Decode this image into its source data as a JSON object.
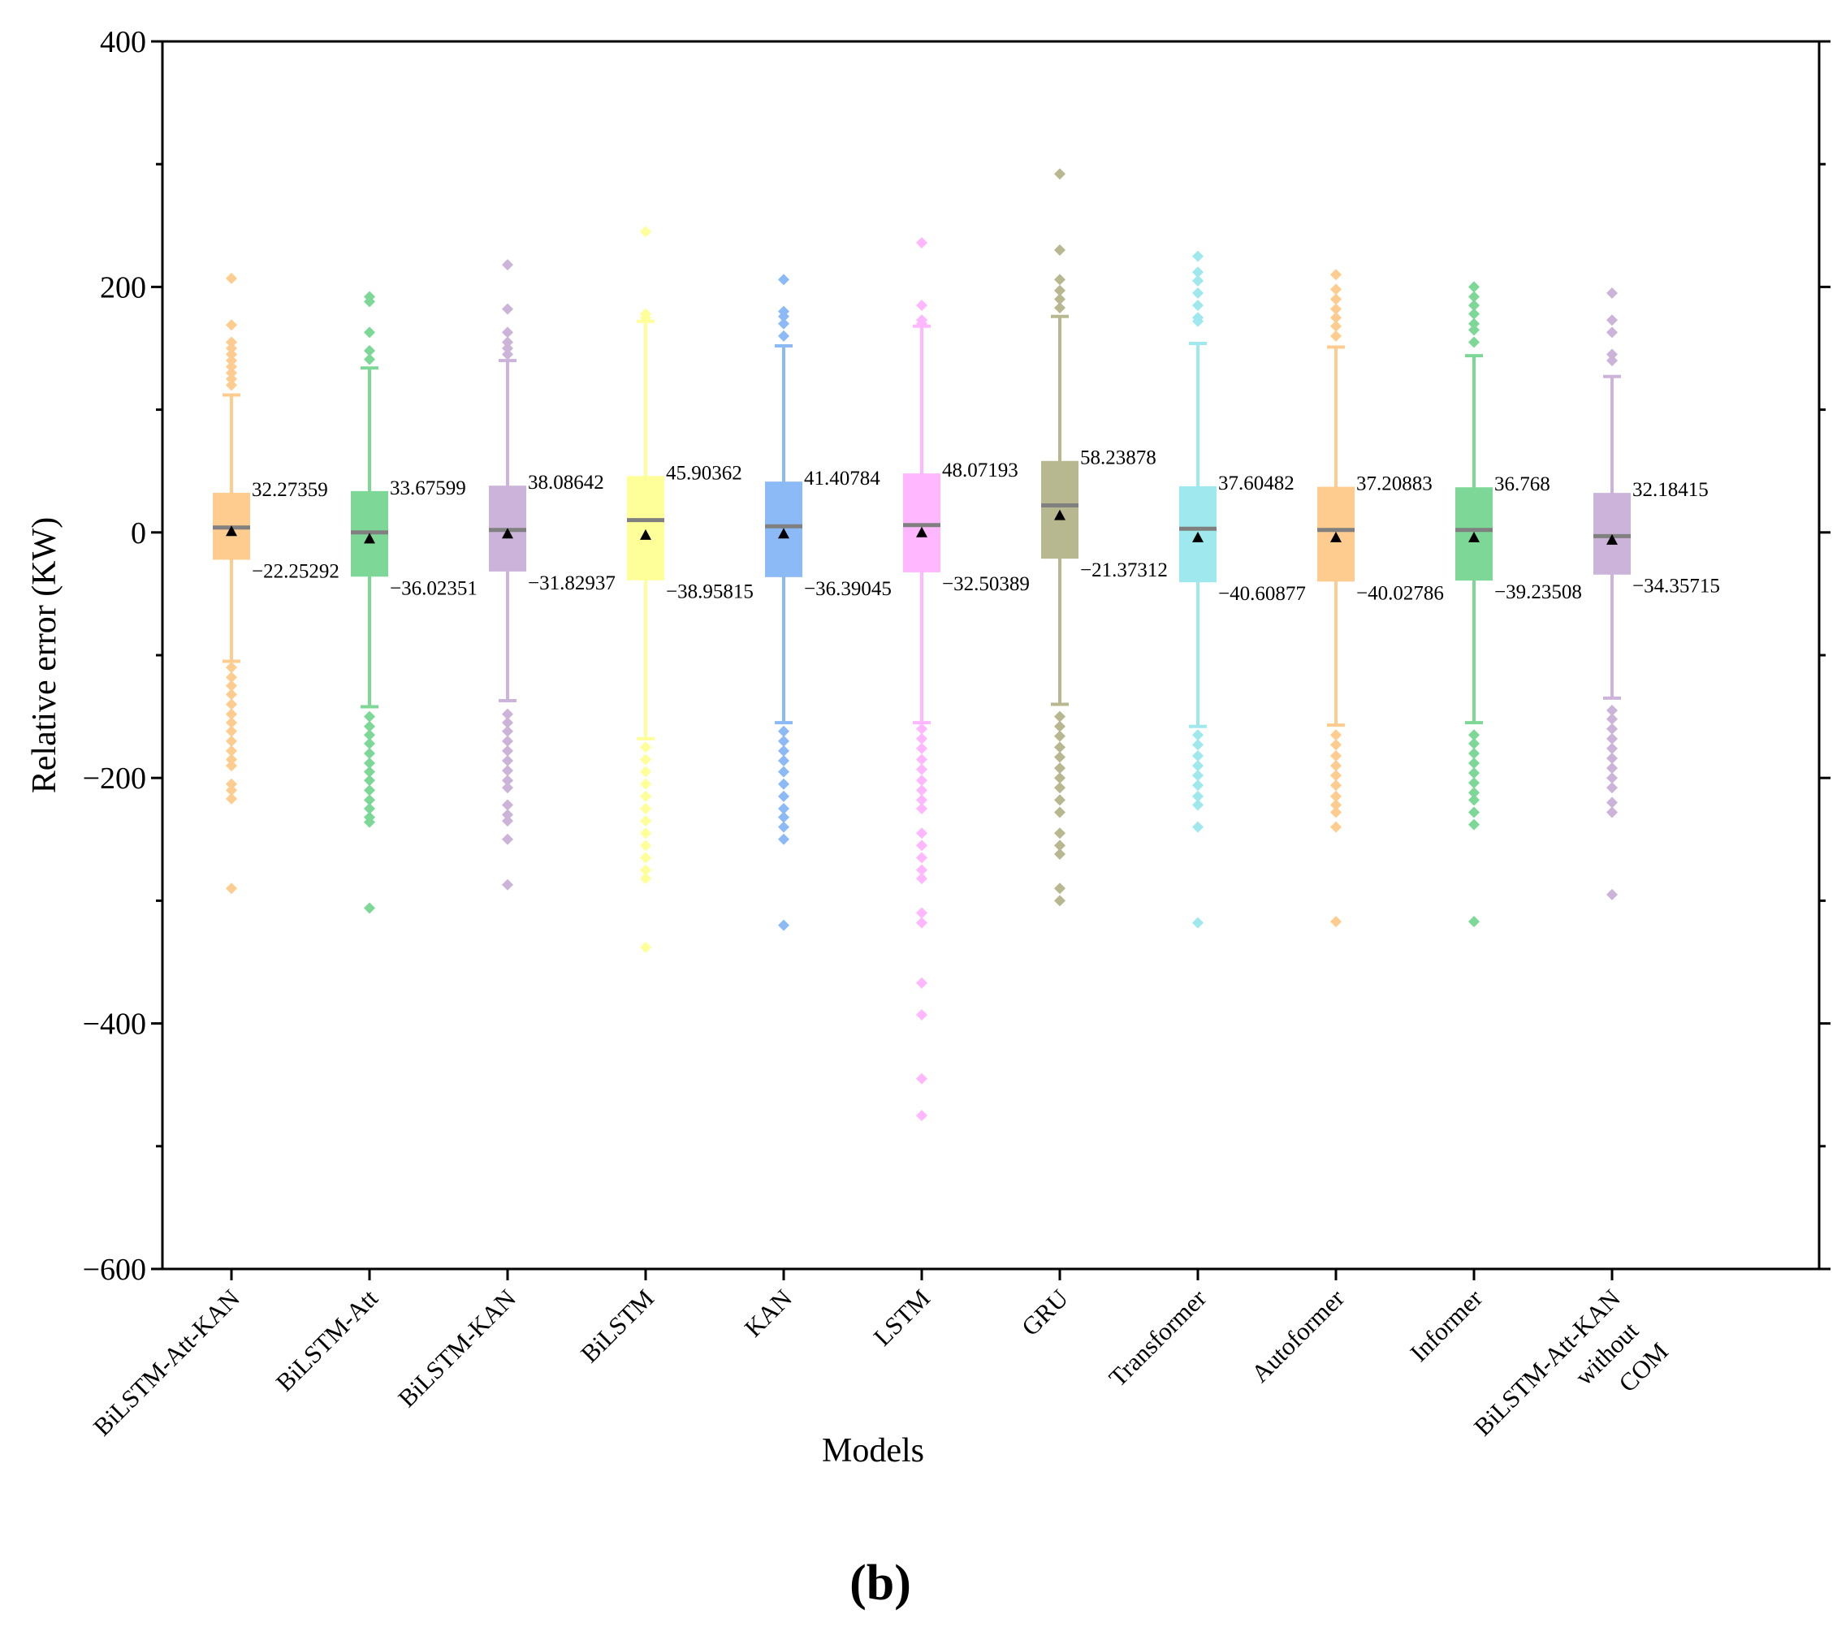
{
  "chart_data": {
    "type": "box",
    "xlabel": "Models",
    "ylabel": "Relative error (KW)",
    "caption": "(b)",
    "ylim": [
      -600,
      400
    ],
    "yticks": [
      400,
      200,
      0,
      -200,
      -400,
      -600
    ],
    "ytick_labels": [
      "400",
      "200",
      "0",
      "−200",
      "−400",
      "−600"
    ],
    "grid": false,
    "legend": "none",
    "median_color": "#808080",
    "mean_marker": "triangle",
    "categories": [
      {
        "name": "BiLSTM-Att-KAN",
        "lines": [
          "BiLSTM-Att-KAN"
        ],
        "color": "#ffcc8f",
        "q1": -22.25292,
        "q3": 32.27359,
        "q1_label": "−22.25292",
        "q3_label": "32.27359",
        "median": 4,
        "mean": 1,
        "whisker_low": -105,
        "whisker_high": 112,
        "outliers": [
          207,
          169,
          155,
          150,
          145,
          140,
          135,
          130,
          125,
          120,
          -110,
          -118,
          -125,
          -132,
          -140,
          -148,
          -155,
          -162,
          -170,
          -178,
          -185,
          -190,
          -205,
          -210,
          -217,
          -290
        ]
      },
      {
        "name": "BiLSTM-Att",
        "lines": [
          "BiLSTM-Att"
        ],
        "color": "#7dd897",
        "q1": -36.02351,
        "q3": 33.67599,
        "q1_label": "−36.02351",
        "q3_label": "33.67599",
        "median": 0,
        "mean": -5,
        "whisker_low": -142,
        "whisker_high": 134,
        "outliers": [
          192,
          188,
          163,
          148,
          141,
          -150,
          -158,
          -165,
          -172,
          -180,
          -188,
          -195,
          -202,
          -210,
          -218,
          -225,
          -232,
          -236,
          -306
        ]
      },
      {
        "name": "BiLSTM-KAN",
        "lines": [
          "BiLSTM-KAN"
        ],
        "color": "#ccb3d9",
        "q1": -31.82937,
        "q3": 38.08642,
        "q1_label": "−31.82937",
        "q3_label": "38.08642",
        "median": 2,
        "mean": -1,
        "whisker_low": -137,
        "whisker_high": 140,
        "outliers": [
          218,
          182,
          163,
          155,
          150,
          145,
          -148,
          -155,
          -162,
          -170,
          -178,
          -186,
          -194,
          -202,
          -208,
          -222,
          -230,
          -235,
          -250,
          -287
        ]
      },
      {
        "name": "BiLSTM",
        "lines": [
          "BiLSTM"
        ],
        "color": "#ffff99",
        "q1": -38.95815,
        "q3": 45.90362,
        "q1_label": "−38.95815",
        "q3_label": "45.90362",
        "median": 10,
        "mean": -2,
        "whisker_low": -168,
        "whisker_high": 172,
        "outliers": [
          245,
          178,
          175,
          -175,
          -185,
          -195,
          -205,
          -215,
          -225,
          -235,
          -245,
          -255,
          -265,
          -275,
          -282,
          -338
        ]
      },
      {
        "name": "KAN",
        "lines": [
          "KAN"
        ],
        "color": "#8cbaf7",
        "q1": -36.39045,
        "q3": 41.40784,
        "q1_label": "−36.39045",
        "q3_label": "41.40784",
        "median": 5,
        "mean": -1,
        "whisker_low": -155,
        "whisker_high": 152,
        "outliers": [
          206,
          180,
          176,
          170,
          160,
          -162,
          -170,
          -178,
          -186,
          -195,
          -205,
          -215,
          -225,
          -232,
          -240,
          -250,
          -320
        ]
      },
      {
        "name": "LSTM",
        "lines": [
          "LSTM"
        ],
        "color": "#ffb8ff",
        "q1": -32.50389,
        "q3": 48.07193,
        "q1_label": "−32.50389",
        "q3_label": "48.07193",
        "median": 6,
        "mean": 0,
        "whisker_low": -155,
        "whisker_high": 168,
        "outliers": [
          236,
          185,
          173,
          170,
          -160,
          -168,
          -176,
          -185,
          -193,
          -202,
          -210,
          -218,
          -225,
          -245,
          -255,
          -265,
          -275,
          -282,
          -310,
          -318,
          -367,
          -393,
          -445,
          -475
        ]
      },
      {
        "name": "GRU",
        "lines": [
          "GRU"
        ],
        "color": "#b8b890",
        "q1": -21.37312,
        "q3": 58.23878,
        "q1_label": "−21.37312",
        "q3_label": "58.23878",
        "median": 22,
        "mean": 14,
        "whisker_low": -140,
        "whisker_high": 176,
        "outliers": [
          292,
          230,
          206,
          197,
          190,
          183,
          -150,
          -158,
          -166,
          -175,
          -183,
          -192,
          -200,
          -208,
          -218,
          -228,
          -245,
          -255,
          -262,
          -290,
          -300
        ]
      },
      {
        "name": "Transformer",
        "lines": [
          "Transformer"
        ],
        "color": "#9ee8ee",
        "q1": -40.60877,
        "q3": 37.60482,
        "q1_label": "−40.60877",
        "q3_label": "37.60482",
        "median": 3,
        "mean": -4,
        "whisker_low": -158,
        "whisker_high": 154,
        "outliers": [
          225,
          212,
          205,
          195,
          185,
          175,
          172,
          -165,
          -173,
          -182,
          -190,
          -198,
          -206,
          -215,
          -222,
          -240,
          -318
        ]
      },
      {
        "name": "Autoformer",
        "lines": [
          "Autoformer"
        ],
        "color": "#ffcc8f",
        "q1": -40.02786,
        "q3": 37.20883,
        "q1_label": "−40.02786",
        "q3_label": "37.20883",
        "median": 2,
        "mean": -4,
        "whisker_low": -157,
        "whisker_high": 151,
        "outliers": [
          210,
          198,
          190,
          182,
          175,
          168,
          160,
          -165,
          -173,
          -182,
          -190,
          -198,
          -206,
          -215,
          -222,
          -228,
          -240,
          -317
        ]
      },
      {
        "name": "Informer",
        "lines": [
          "Informer"
        ],
        "color": "#7dd897",
        "q1": -39.23508,
        "q3": 36.768,
        "q1_label": "−39.23508",
        "q3_label": "36.768",
        "median": 2,
        "mean": -4,
        "whisker_low": -155,
        "whisker_high": 144,
        "outliers": [
          200,
          192,
          185,
          178,
          170,
          165,
          155,
          -165,
          -172,
          -180,
          -188,
          -196,
          -204,
          -212,
          -218,
          -228,
          -238,
          -317
        ]
      },
      {
        "name": "BiLSTM-Att-KAN without COM",
        "lines": [
          "BiLSTM-Att-KAN",
          "without",
          "COM"
        ],
        "color": "#ccb3d9",
        "q1": -34.35715,
        "q3": 32.18415,
        "q1_label": "−34.35715",
        "q3_label": "32.18415",
        "median": -3,
        "mean": -6,
        "whisker_low": -135,
        "whisker_high": 127,
        "outliers": [
          195,
          173,
          163,
          145,
          140,
          -145,
          -152,
          -160,
          -168,
          -176,
          -184,
          -192,
          -200,
          -208,
          -220,
          -228,
          -295
        ]
      }
    ]
  }
}
